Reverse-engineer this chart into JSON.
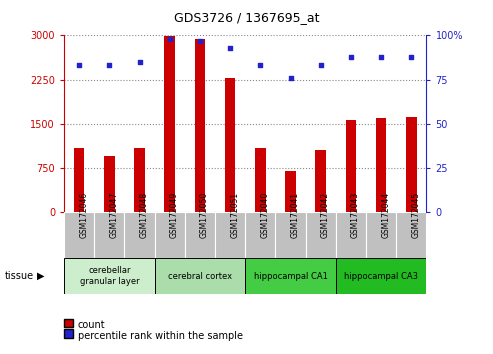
{
  "title": "GDS3726 / 1367695_at",
  "samples": [
    "GSM172046",
    "GSM172047",
    "GSM172048",
    "GSM172049",
    "GSM172050",
    "GSM172051",
    "GSM172040",
    "GSM172041",
    "GSM172042",
    "GSM172043",
    "GSM172044",
    "GSM172045"
  ],
  "counts": [
    1100,
    950,
    1100,
    2990,
    2940,
    2280,
    1100,
    700,
    1060,
    1570,
    1600,
    1620
  ],
  "percentiles": [
    83,
    83,
    85,
    98,
    97,
    93,
    83,
    76,
    83,
    88,
    88,
    88
  ],
  "ylim_left": [
    0,
    3000
  ],
  "ylim_right": [
    0,
    100
  ],
  "yticks_left": [
    0,
    750,
    1500,
    2250,
    3000
  ],
  "yticks_right": [
    0,
    25,
    50,
    75,
    100
  ],
  "tissue_groups": [
    {
      "label": "cerebellar\ngranular layer",
      "start": 0,
      "end": 3,
      "color": "#cceecc"
    },
    {
      "label": "cerebral cortex",
      "start": 3,
      "end": 6,
      "color": "#aaddaa"
    },
    {
      "label": "hippocampal CA1",
      "start": 6,
      "end": 9,
      "color": "#44cc44"
    },
    {
      "label": "hippocampal CA3",
      "start": 9,
      "end": 12,
      "color": "#22bb22"
    }
  ],
  "bar_color": "#cc0000",
  "dot_color": "#2222cc",
  "grid_color": "#888888",
  "bg_xtick": "#c0c0c0",
  "tissue_arrow_label": "tissue"
}
